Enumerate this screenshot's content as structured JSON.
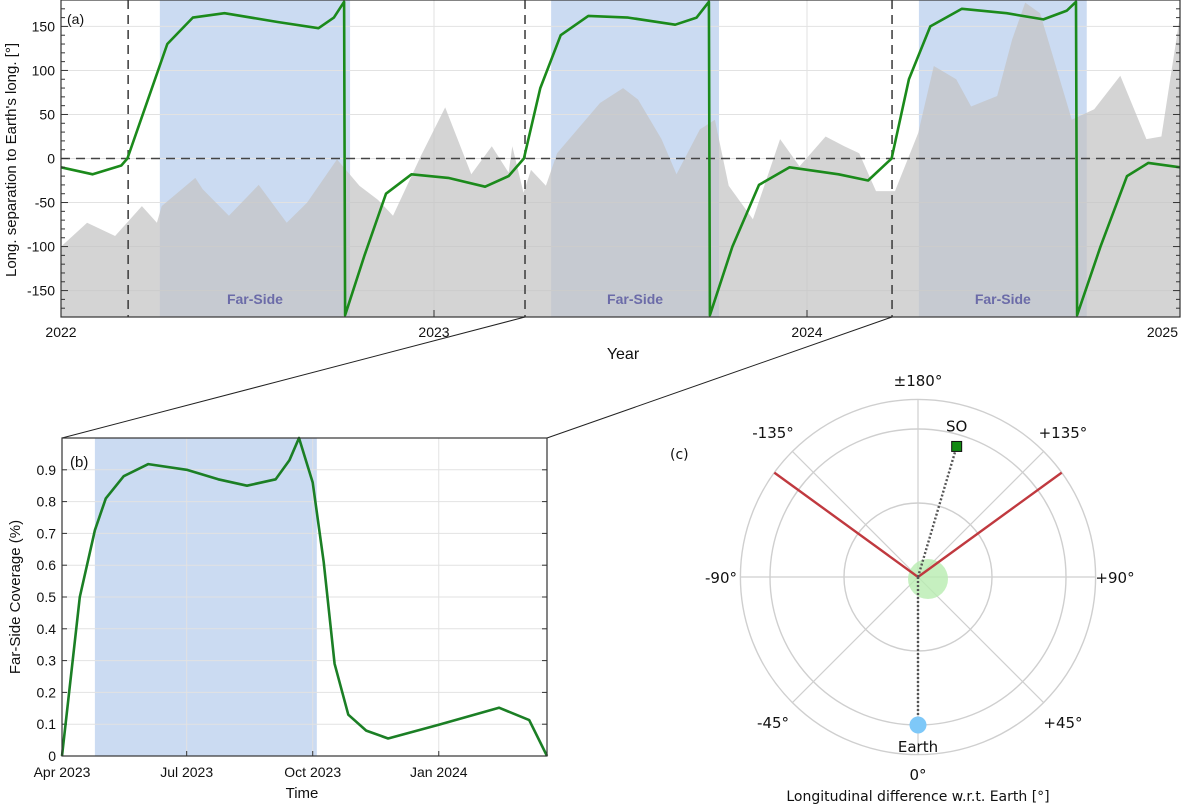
{
  "chart_data": [
    {
      "type": "area",
      "panel_label": "(a)",
      "xlabel": "Year",
      "ylabel": "Long. separation to Earth's long. [°]",
      "xlim": [
        2022,
        2025
      ],
      "ylim": [
        -180,
        180
      ],
      "xticks": [
        "2022",
        "2023",
        "2024",
        "2025"
      ],
      "yticks": [
        150,
        100,
        50,
        0,
        -50,
        -100,
        -150
      ],
      "grid": true,
      "far_side_label": "Far-Side",
      "far_side_bands": [
        [
          2022.265,
          2022.775
        ],
        [
          2023.314,
          2023.764
        ],
        [
          2024.3,
          2024.75
        ]
      ],
      "dashed_vertical_lines": [
        2022.18,
        2023.244,
        2024.228
      ],
      "dashed_horizontal_line": 0,
      "colors": {
        "far_side": "#cbdbf2",
        "area": "#c4c4c4",
        "line": "#1b8a1b",
        "far_text": "#6b6ba8"
      },
      "area_series": {
        "x": [
          2022.0,
          2022.07,
          2022.145,
          2022.217,
          2022.257,
          2022.27,
          2022.36,
          2022.38,
          2022.45,
          2022.53,
          2022.605,
          2022.66,
          2022.74,
          2022.8,
          2022.85,
          2022.89,
          2022.965,
          2023.03,
          2023.1,
          2023.155,
          2023.2,
          2023.21,
          2023.24,
          2023.26,
          2023.3,
          2023.33,
          2023.445,
          2023.507,
          2023.547,
          2023.61,
          2023.65,
          2023.713,
          2023.753,
          2023.79,
          2023.855,
          2023.928,
          2023.98,
          2024.05,
          2024.1,
          2024.14,
          2024.185,
          2024.236,
          2024.298,
          2024.34,
          2024.4,
          2024.44,
          2024.51,
          2024.55,
          2024.585,
          2024.625,
          2024.71,
          2024.77,
          2024.84,
          2024.91,
          2024.95,
          2025.0
        ],
        "y": [
          -100,
          -73,
          -88,
          -54,
          -73,
          -54,
          -22,
          -35,
          -65,
          -30,
          -73,
          -50,
          -1,
          -31,
          -47,
          -65,
          3,
          58,
          -18,
          14,
          -16,
          14,
          -39,
          -13,
          -31,
          6,
          63,
          80,
          67,
          22,
          -18,
          33,
          44,
          -31,
          -69,
          22,
          -9,
          25,
          14,
          6,
          -37,
          -37,
          29,
          105,
          90,
          59,
          71,
          135,
          177,
          165,
          44,
          56,
          94,
          22,
          25,
          162
        ]
      },
      "line_series": [
        [
          "2022-01-01",
          -10
        ],
        [
          "2022-02-01",
          -18
        ],
        [
          "2022-03-01",
          -8
        ],
        [
          "2022-03-07",
          0
        ],
        [
          "2022-03-25",
          60
        ],
        [
          "2022-04-15",
          130
        ],
        [
          "2022-05-10",
          160
        ],
        [
          "2022-06-10",
          165
        ],
        [
          "2022-08-01",
          155
        ],
        [
          "2022-09-10",
          148
        ],
        [
          "2022-09-25",
          160
        ],
        [
          "2022-10-05",
          178
        ],
        [
          "2022-10-06",
          -178
        ],
        [
          "2022-10-25",
          -110
        ],
        [
          "2022-11-15",
          -40
        ],
        [
          "2022-12-10",
          -18
        ],
        [
          "2023-01-15",
          -22
        ],
        [
          "2023-02-20",
          -32
        ],
        [
          "2023-03-15",
          -20
        ],
        [
          "2023-03-30",
          0
        ],
        [
          "2023-04-15",
          80
        ],
        [
          "2023-05-05",
          140
        ],
        [
          "2023-06-01",
          162
        ],
        [
          "2023-07-10",
          160
        ],
        [
          "2023-08-25",
          152
        ],
        [
          "2023-09-15",
          160
        ],
        [
          "2023-09-27",
          178
        ],
        [
          "2023-09-28",
          -178
        ],
        [
          "2023-10-20",
          -100
        ],
        [
          "2023-11-15",
          -30
        ],
        [
          "2023-12-15",
          -10
        ],
        [
          "2024-02-01",
          -18
        ],
        [
          "2024-03-01",
          -25
        ],
        [
          "2024-03-24",
          0
        ],
        [
          "2024-04-10",
          90
        ],
        [
          "2024-05-01",
          150
        ],
        [
          "2024-06-01",
          170
        ],
        [
          "2024-07-15",
          165
        ],
        [
          "2024-08-20",
          158
        ],
        [
          "2024-09-12",
          168
        ],
        [
          "2024-09-21",
          178
        ],
        [
          "2024-09-22",
          -178
        ],
        [
          "2024-10-15",
          -100
        ],
        [
          "2024-11-10",
          -20
        ],
        [
          "2024-12-01",
          -5
        ],
        [
          "2025-01-01",
          -10
        ]
      ]
    },
    {
      "type": "line",
      "panel_label": "(b)",
      "xlabel": "Time",
      "ylabel": "Far-Side Coverage (%)",
      "xlim": [
        "2023-04-01",
        "2024-03-20"
      ],
      "ylim": [
        0,
        1
      ],
      "xticks": [
        {
          "date": "2023-04-01",
          "label": "Apr 2023"
        },
        {
          "date": "2023-07-01",
          "label": "Jul 2023"
        },
        {
          "date": "2023-10-01",
          "label": "Oct 2023"
        },
        {
          "date": "2024-01-01",
          "label": "Jan 2024"
        }
      ],
      "yticks": [
        "0",
        "0.1",
        "0.2",
        "0.3",
        "0.4",
        "0.5",
        "0.6",
        "0.7",
        "0.8",
        "0.9"
      ],
      "grid": true,
      "far_side_band": [
        "2023-04-25",
        "2023-10-04"
      ],
      "series": [
        [
          "2023-04-01",
          0
        ],
        [
          "2023-04-14",
          0.5
        ],
        [
          "2023-04-25",
          0.71
        ],
        [
          "2023-05-03",
          0.81
        ],
        [
          "2023-05-16",
          0.88
        ],
        [
          "2023-06-03",
          0.918
        ],
        [
          "2023-07-01",
          0.9
        ],
        [
          "2023-07-24",
          0.87
        ],
        [
          "2023-08-14",
          0.85
        ],
        [
          "2023-09-04",
          0.87
        ],
        [
          "2023-09-14",
          0.93
        ],
        [
          "2023-09-21",
          1.0
        ],
        [
          "2023-10-01",
          0.86
        ],
        [
          "2023-10-09",
          0.61
        ],
        [
          "2023-10-17",
          0.29
        ],
        [
          "2023-10-27",
          0.13
        ],
        [
          "2023-11-09",
          0.08
        ],
        [
          "2023-11-25",
          0.055
        ],
        [
          "2024-01-01",
          0.098
        ],
        [
          "2024-02-14",
          0.152
        ],
        [
          "2024-03-07",
          0.113
        ],
        [
          "2024-03-20",
          0
        ]
      ]
    },
    {
      "type": "polar",
      "panel_label": "(c)",
      "xlabel": "Longitudinal difference w.r.t. Earth [°]",
      "angle_labels": [
        {
          "angle": 180,
          "label": "±180°"
        },
        {
          "angle": -135,
          "label": "-135°"
        },
        {
          "angle": 135,
          "label": "+135°"
        },
        {
          "angle": -90,
          "label": "-90°"
        },
        {
          "angle": 90,
          "label": "+90°"
        },
        {
          "angle": -45,
          "label": "-45°"
        },
        {
          "angle": 45,
          "label": "+45°"
        },
        {
          "angle": 0,
          "label": "0°"
        }
      ],
      "rings": [
        0.5,
        1.0,
        1.2
      ],
      "far_side_boundaries": [
        -126,
        126
      ],
      "points": [
        {
          "name": "SO",
          "angle": 163.5,
          "r": 0.92,
          "color": "#138a13",
          "marker": "square"
        },
        {
          "name": "Earth",
          "angle": 0,
          "r": 1.0,
          "color": "#7ec8f8",
          "marker": "circle"
        }
      ],
      "sun_color": "#b8ecb0",
      "boundary_color": "#c0393f"
    }
  ]
}
